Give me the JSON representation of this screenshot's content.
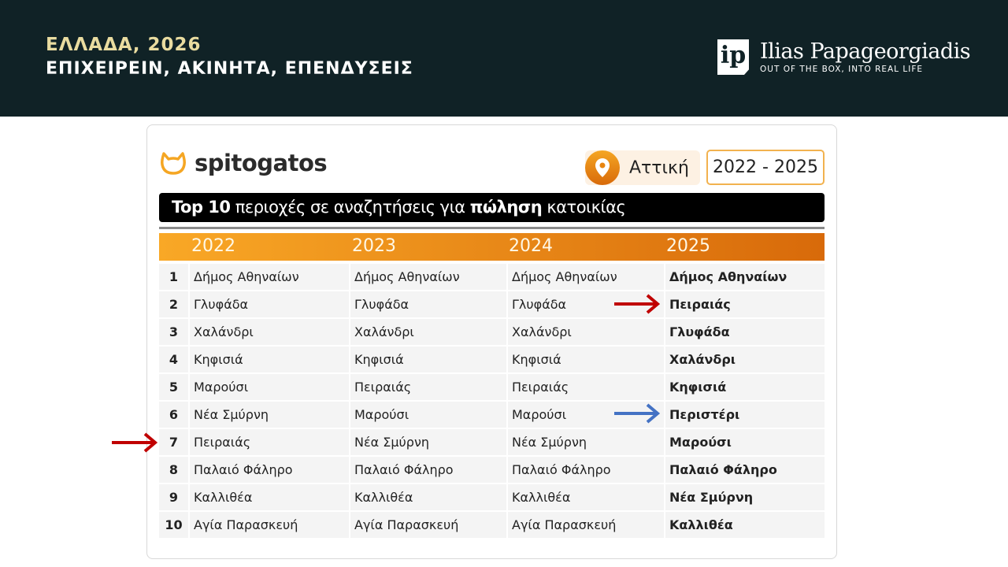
{
  "header": {
    "line1": "ΕΛΛΑΔΑ, 2026",
    "line2": "ΕΠΙΧΕΙΡΕΙΝ, ΑΚΙΝΗΤΑ, ΕΠΕΝΔΥΣΕΙΣ",
    "brand": {
      "logo_letters": "ip",
      "name": "Ilias Papageorgiadis",
      "tagline": "OUT OF THE BOX, INTO REAL LIFE"
    }
  },
  "card": {
    "logo": "spitogatos",
    "region": "Αττική",
    "years": "2022 - 2025",
    "title": {
      "pre": "Top 10",
      "mid1": " περιοχές σε αναζητήσεις για ",
      "bold": "πώληση",
      "post": " κατοικίας"
    },
    "columns": [
      "2022",
      "2023",
      "2024",
      "2025"
    ],
    "rows": [
      [
        "1",
        "Δήμος Αθηναίων",
        "Δήμος Αθηναίων",
        "Δήμος Αθηναίων",
        "Δήμος Αθηναίων"
      ],
      [
        "2",
        "Γλυφάδα",
        "Γλυφάδα",
        "Γλυφάδα",
        "Πειραιάς"
      ],
      [
        "3",
        "Χαλάνδρι",
        "Χαλάνδρι",
        "Χαλάνδρι",
        "Γλυφάδα"
      ],
      [
        "4",
        "Κηφισιά",
        "Κηφισιά",
        "Κηφισιά",
        "Χαλάνδρι"
      ],
      [
        "5",
        "Μαρούσι",
        "Πειραιάς",
        "Πειραιάς",
        "Κηφισιά"
      ],
      [
        "6",
        "Νέα Σμύρνη",
        "Μαρούσι",
        "Μαρούσι",
        "Περιστέρι"
      ],
      [
        "7",
        "Πειραιάς",
        "Νέα Σμύρνη",
        "Νέα Σμύρνη",
        "Μαρούσι"
      ],
      [
        "8",
        "Παλαιό Φάληρο",
        "Παλαιό Φάληρο",
        "Παλαιό Φάληρο",
        "Παλαιό Φάληρο"
      ],
      [
        "9",
        "Καλλιθέα",
        "Καλλιθέα",
        "Καλλιθέα",
        "Νέα Σμύρνη"
      ],
      [
        "10",
        "Αγία Παρασκευή",
        "Αγία Παρασκευή",
        "Αγία Παρασκευή",
        "Καλλιθέα"
      ]
    ]
  },
  "colors": {
    "header_bg": "#102226",
    "accent": "#f5a623",
    "red_arrow": "#c00000",
    "blue_arrow": "#4472c4"
  }
}
